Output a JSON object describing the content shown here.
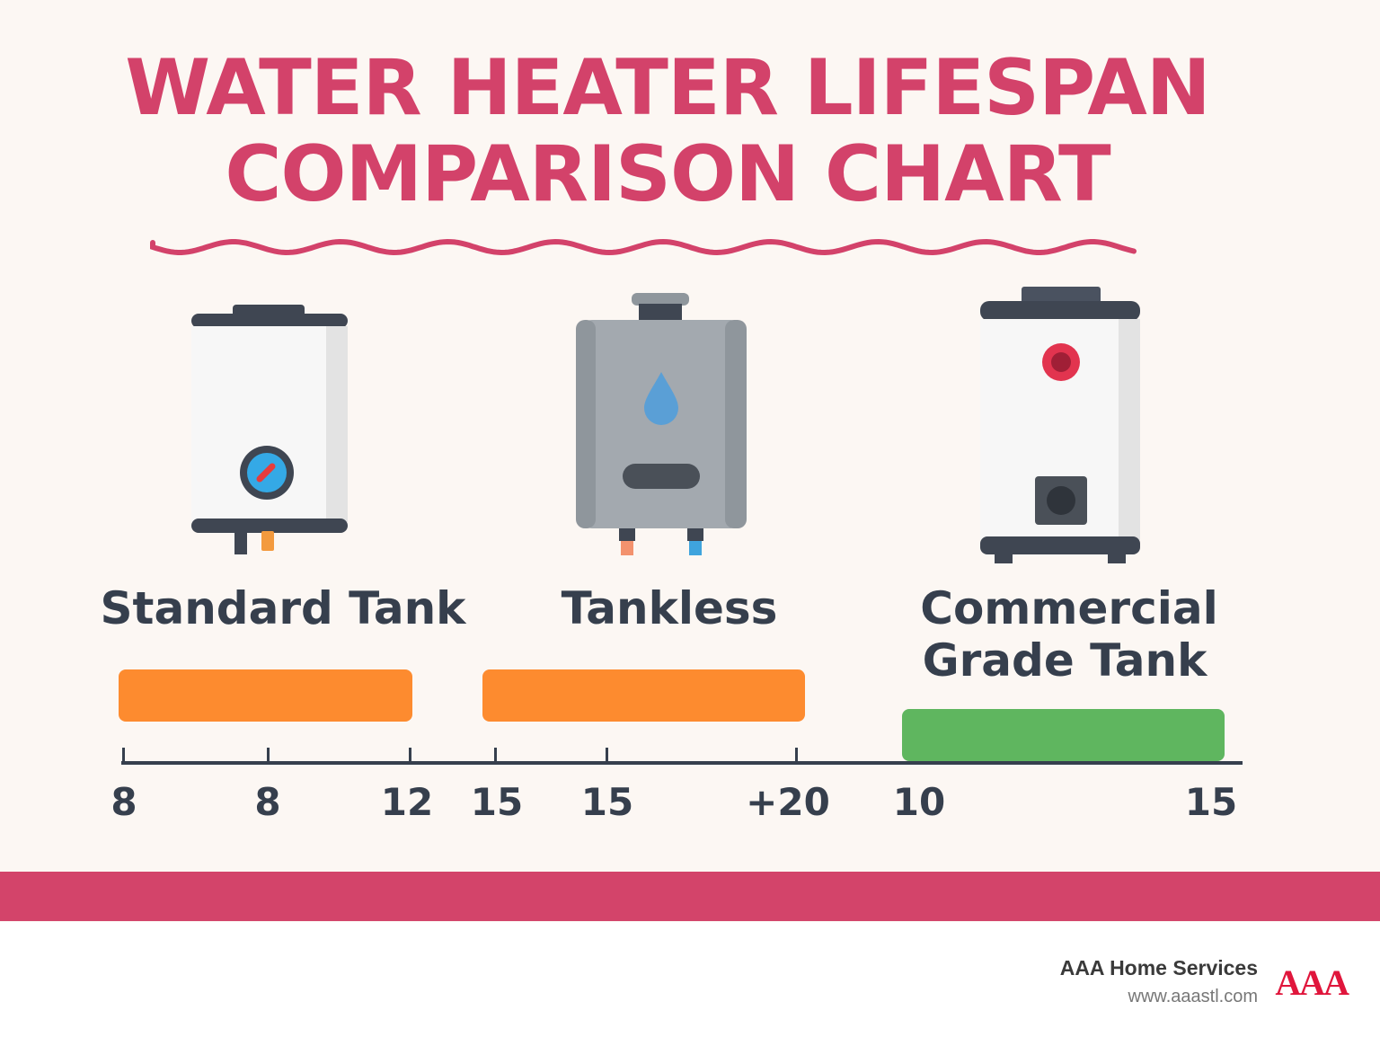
{
  "title_line1": "WATER HEATER LIFESPAN",
  "title_line2": "COMPARISON CHART",
  "colors": {
    "title": "#d3426a",
    "text": "#363f4d",
    "orange": "#fd8b2f",
    "green": "#5fb65f",
    "band": "#d3446a",
    "logo": "#e0163c"
  },
  "chart_data": {
    "type": "bar",
    "orientation": "horizontal-range",
    "categories": [
      "Standard Tank",
      "Tankless",
      "Commercial Grade Tank"
    ],
    "category_lines": [
      [
        "Standard Tank"
      ],
      [
        "Tankless"
      ],
      [
        "Commercial",
        "Grade Tank"
      ]
    ],
    "ranges": [
      {
        "category": "Standard Tank",
        "min": 8,
        "max": 12,
        "color": "#fd8b2f"
      },
      {
        "category": "Tankless",
        "min": 15,
        "max": 20,
        "max_label": "+20",
        "color": "#fd8b2f"
      },
      {
        "category": "Commercial Grade Tank",
        "min": 10,
        "max": 15,
        "color": "#5fb65f"
      }
    ],
    "tick_labels": [
      "8",
      "8",
      "12",
      "15",
      "15",
      "+20",
      "10",
      "15"
    ],
    "icons": [
      "standard-tank-heater-icon",
      "tankless-heater-icon",
      "commercial-tank-heater-icon"
    ],
    "title": "WATER HEATER LIFESPAN COMPARISON CHART",
    "xlabel": "",
    "ylabel": "",
    "grid": false
  },
  "footer": {
    "company": "AAA Home Services",
    "url": "www.aaastl.com",
    "logo_text": "AAA"
  }
}
